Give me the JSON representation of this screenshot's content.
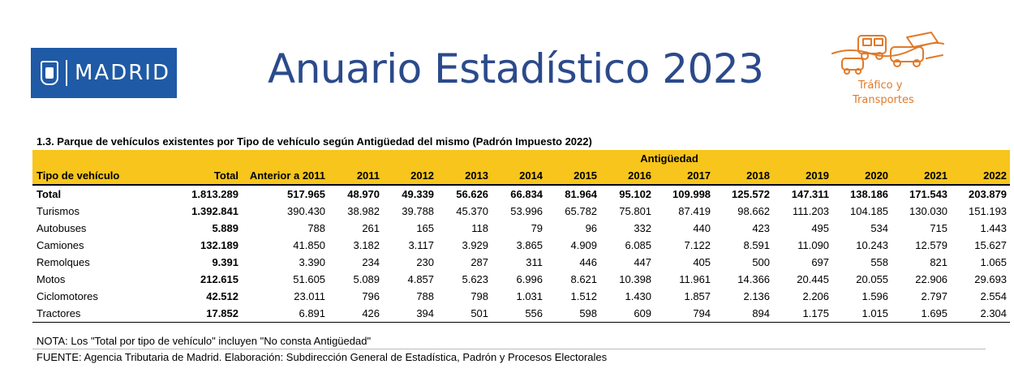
{
  "header": {
    "logo_text": "MADRID",
    "title": "Anuario Estadístico 2023",
    "section_line1": "Tráfico y",
    "section_line2": "Transportes"
  },
  "table": {
    "title": "1.3. Parque de vehículos existentes por Tipo de vehículo según Antigüedad del mismo (Padrón Impuesto 2022)",
    "group_header": "Antigüedad",
    "columns": [
      "Tipo de vehículo",
      "Total",
      "Anterior a 2011",
      "2011",
      "2012",
      "2013",
      "2014",
      "2015",
      "2016",
      "2017",
      "2018",
      "2019",
      "2020",
      "2021",
      "2022"
    ],
    "rows": [
      [
        "Total",
        "1.813.289",
        "517.965",
        "48.970",
        "49.339",
        "56.626",
        "66.834",
        "81.964",
        "95.102",
        "109.998",
        "125.572",
        "147.311",
        "138.186",
        "171.543",
        "203.879"
      ],
      [
        "Turismos",
        "1.392.841",
        "390.430",
        "38.982",
        "39.788",
        "45.370",
        "53.996",
        "65.782",
        "75.801",
        "87.419",
        "98.662",
        "111.203",
        "104.185",
        "130.030",
        "151.193"
      ],
      [
        "Autobuses",
        "5.889",
        "788",
        "261",
        "165",
        "118",
        "79",
        "96",
        "332",
        "440",
        "423",
        "495",
        "534",
        "715",
        "1.443"
      ],
      [
        "Camiones",
        "132.189",
        "41.850",
        "3.182",
        "3.117",
        "3.929",
        "3.865",
        "4.909",
        "6.085",
        "7.122",
        "8.591",
        "11.090",
        "10.243",
        "12.579",
        "15.627"
      ],
      [
        "Remolques",
        "9.391",
        "3.390",
        "234",
        "230",
        "287",
        "311",
        "446",
        "447",
        "405",
        "500",
        "697",
        "558",
        "821",
        "1.065"
      ],
      [
        "Motos",
        "212.615",
        "51.605",
        "5.089",
        "4.857",
        "5.623",
        "6.996",
        "8.621",
        "10.398",
        "11.961",
        "14.366",
        "20.445",
        "20.055",
        "22.906",
        "29.693"
      ],
      [
        "Ciclomotores",
        "42.512",
        "23.011",
        "796",
        "788",
        "798",
        "1.031",
        "1.512",
        "1.430",
        "1.857",
        "2.136",
        "2.206",
        "1.596",
        "2.797",
        "2.554"
      ],
      [
        "Tractores",
        "17.852",
        "6.891",
        "426",
        "394",
        "501",
        "556",
        "598",
        "609",
        "794",
        "894",
        "1.175",
        "1.015",
        "1.695",
        "2.304"
      ]
    ]
  },
  "footer": {
    "note": "NOTA: Los \"Total por tipo de vehículo\" incluyen \"No consta Antigüedad\"",
    "source": "FUENTE: Agencia Tributaria de Madrid. Elaboración: Subdirección General de Estadística, Padrón y Procesos Electorales"
  },
  "colors": {
    "header_bg": "#f7c51b",
    "title_blue": "#2b4a8b",
    "logo_blue": "#1f5aa6",
    "section_orange": "#e07a2b"
  }
}
